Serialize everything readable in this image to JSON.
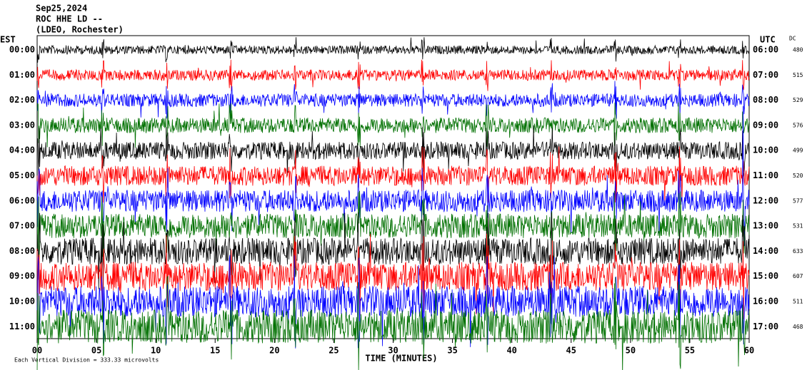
{
  "header": {
    "title": "Sep25,2024",
    "station": "ROC HHE LD --",
    "network": "(LDEO, Rochester)"
  },
  "left_label": "EST",
  "right_label": "UTC",
  "dc_label": "DC",
  "rows": [
    {
      "est": "00:00",
      "utc": "06:00",
      "dc": "480"
    },
    {
      "est": "01:00",
      "utc": "07:00",
      "dc": "515"
    },
    {
      "est": "02:00",
      "utc": "08:00",
      "dc": "529"
    },
    {
      "est": "03:00",
      "utc": "09:00",
      "dc": "576"
    },
    {
      "est": "04:00",
      "utc": "10:00",
      "dc": "499"
    },
    {
      "est": "05:00",
      "utc": "11:00",
      "dc": "520"
    },
    {
      "est": "06:00",
      "utc": "12:00",
      "dc": "577"
    },
    {
      "est": "07:00",
      "utc": "13:00",
      "dc": "531"
    },
    {
      "est": "08:00",
      "utc": "14:00",
      "dc": "633"
    },
    {
      "est": "09:00",
      "utc": "15:00",
      "dc": "607"
    },
    {
      "est": "10:00",
      "utc": "16:00",
      "dc": "511"
    },
    {
      "est": "11:00",
      "utc": "17:00",
      "dc": "468"
    }
  ],
  "trace_colors": [
    "#000000",
    "#ff0000",
    "#0000ff",
    "#007000"
  ],
  "x_axis": {
    "label": "TIME (MINUTES)",
    "ticks": [
      "00",
      "05",
      "10",
      "15",
      "20",
      "25",
      "30",
      "35",
      "40",
      "45",
      "50",
      "55",
      "60"
    ]
  },
  "footer": "Each Vertical Division = 333.33 microvolts"
}
